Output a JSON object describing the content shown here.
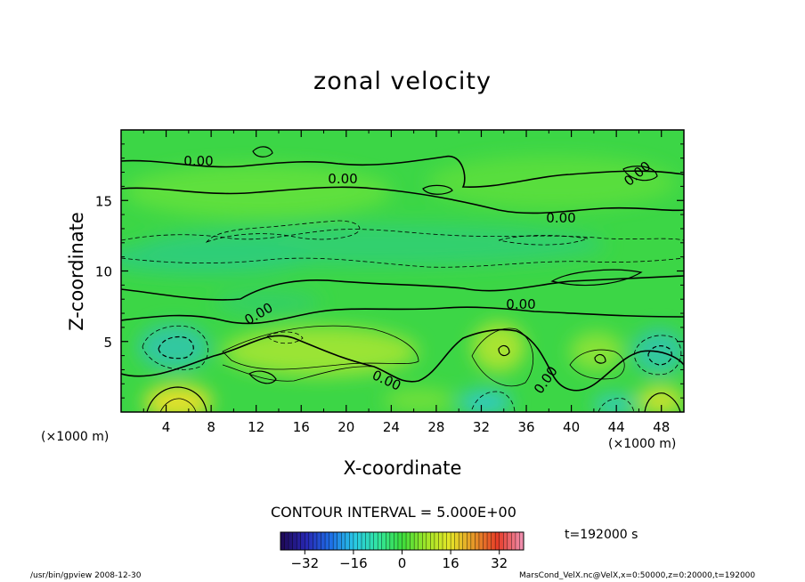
{
  "chart_data": {
    "type": "heatmap",
    "title": "zonal velocity",
    "xlabel": "X-coordinate",
    "ylabel": "Z-coordinate",
    "x_unit_label": "(×1000 m)",
    "xlim": [
      0,
      50
    ],
    "ylim": [
      0,
      20
    ],
    "x_ticks": [
      "4",
      "8",
      "12",
      "16",
      "20",
      "24",
      "28",
      "32",
      "36",
      "40",
      "44",
      "48"
    ],
    "y_ticks": [
      "5",
      "10",
      "15"
    ],
    "contour_interval_text": "CONTOUR INTERVAL = 5.000E+00",
    "contour_labels": [
      "0.00",
      "0.00",
      "0.00",
      "0.00",
      "0.00",
      "0.00",
      "0.00",
      "0.00"
    ],
    "colorbar": {
      "range": [
        -40,
        40
      ],
      "ticks": [
        "−32",
        "−16",
        "0",
        "16",
        "32"
      ],
      "colors": [
        "#1e0a5a",
        "#2828b4",
        "#1e6ee6",
        "#28c8e6",
        "#32e6a0",
        "#3cdc3c",
        "#a0e628",
        "#e6e628",
        "#e69628",
        "#e63c28",
        "#f08caa"
      ]
    },
    "time_label": "t=192000 s"
  },
  "footer": {
    "left": "/usr/bin/gpview   2008-12-30",
    "right": "MarsCond_VelX.nc@VelX,x=0:50000,z=0:20000,t=192000"
  }
}
